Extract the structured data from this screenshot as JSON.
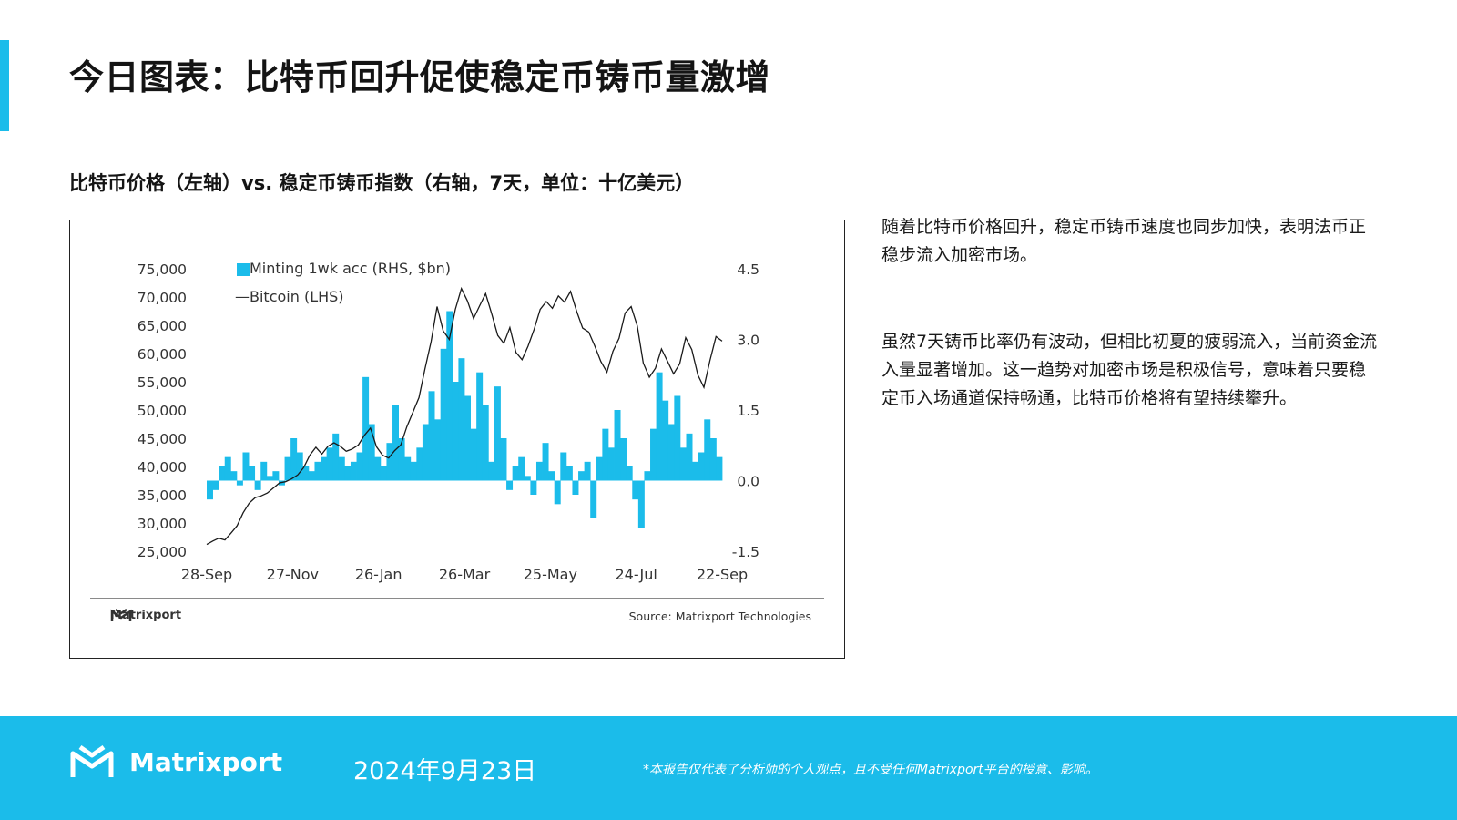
{
  "header": {
    "title": "今日图表：比特币回升促使稳定币铸币量激增",
    "subtitle": "比特币价格（左轴）vs. 稳定币铸币指数（右轴，7天，单位：十亿美元）"
  },
  "commentary": {
    "p1": "随着比特币价格回升，稳定币铸币速度也同步加快，表明法币正稳步流入加密市场。",
    "p2": "虽然7天铸币比率仍有波动，但相比初夏的疲弱流入，当前资金流入量显著增加。这一趋势对加密市场是积极信号，意味着只要稳定币入场通道保持畅通，比特币价格将有望持续攀升。"
  },
  "frame": {
    "logo_text": "Matrixport",
    "source": "Source: Matrixport Technologies"
  },
  "footer": {
    "brand": "Matrixport",
    "date": "2024年9月23日",
    "disclaimer": "*本报告仅代表了分析师的个人观点，且不受任何Matrixport平台的授意、影响。"
  },
  "colors": {
    "accent": "#1bbcea",
    "bar": "#1bbcea",
    "line": "#1a1a1a"
  },
  "chart_data": {
    "type": "bar+line",
    "legend_position": "top-left",
    "x_tick_labels": [
      "28-Sep",
      "27-Nov",
      "26-Jan",
      "26-Mar",
      "25-May",
      "24-Jul",
      "22-Sep"
    ],
    "y_left": {
      "label": "Bitcoin (LHS)",
      "range": [
        25000,
        75000
      ],
      "ticks": [
        "75,000",
        "70,000",
        "65,000",
        "60,000",
        "55,000",
        "50,000",
        "45,000",
        "40,000",
        "35,000",
        "30,000",
        "25,000"
      ]
    },
    "y_right": {
      "label": "Minting 1wk acc (RHS, $bn)",
      "range": [
        -1.5,
        4.5
      ],
      "ticks": [
        "4.5",
        "3.0",
        "1.5",
        "0.0",
        "-1.5"
      ]
    },
    "legend": [
      "Minting 1wk acc (RHS, $bn)",
      "—Bitcoin (LHS)"
    ],
    "series": [
      {
        "name": "Bitcoin (LHS)",
        "kind": "line",
        "axis": "left",
        "values": [
          26200,
          26800,
          27300,
          27000,
          28200,
          29500,
          31800,
          33500,
          34500,
          34800,
          35300,
          36200,
          37100,
          37300,
          37800,
          38500,
          39800,
          42000,
          43400,
          42200,
          43600,
          44200,
          43600,
          42700,
          43100,
          43800,
          45500,
          46800,
          43500,
          42000,
          41500,
          42800,
          43800,
          47000,
          49600,
          52200,
          57300,
          62100,
          68300,
          64000,
          62500,
          67800,
          71500,
          69300,
          66200,
          68400,
          70600,
          67000,
          63200,
          61800,
          64600,
          60200,
          58900,
          61300,
          64300,
          67800,
          69200,
          68000,
          70200,
          69100,
          71000,
          67500,
          64500,
          63800,
          61300,
          58600,
          56700,
          60400,
          62700,
          67200,
          68300,
          64900,
          58300,
          55800,
          57400,
          60800,
          58600,
          56400,
          58200,
          62800,
          60700,
          56200,
          54000,
          58800,
          63000,
          62200
        ]
      },
      {
        "name": "Minting 1wk acc (RHS, $bn)",
        "kind": "bar",
        "axis": "right",
        "values": [
          -0.4,
          -0.2,
          0.3,
          0.5,
          0.2,
          -0.1,
          0.6,
          0.3,
          -0.2,
          0.4,
          0.1,
          0.2,
          -0.1,
          0.5,
          0.9,
          0.6,
          0.3,
          0.2,
          0.4,
          0.5,
          0.7,
          1.0,
          0.5,
          0.3,
          0.4,
          0.6,
          2.2,
          1.2,
          0.5,
          0.3,
          0.8,
          1.6,
          0.9,
          0.5,
          0.4,
          0.7,
          1.2,
          1.9,
          1.3,
          2.8,
          3.6,
          2.1,
          2.6,
          1.8,
          1.1,
          2.3,
          1.6,
          0.4,
          2.0,
          0.9,
          -0.2,
          0.3,
          0.5,
          0.1,
          -0.3,
          0.4,
          0.8,
          0.2,
          -0.5,
          0.6,
          0.3,
          -0.3,
          0.2,
          0.4,
          -0.8,
          0.5,
          1.1,
          0.7,
          1.5,
          0.9,
          0.3,
          -0.4,
          -1.0,
          0.2,
          1.1,
          2.3,
          1.7,
          1.2,
          1.8,
          0.7,
          1.0,
          0.4,
          0.6,
          1.3,
          0.9,
          0.5
        ]
      }
    ]
  }
}
